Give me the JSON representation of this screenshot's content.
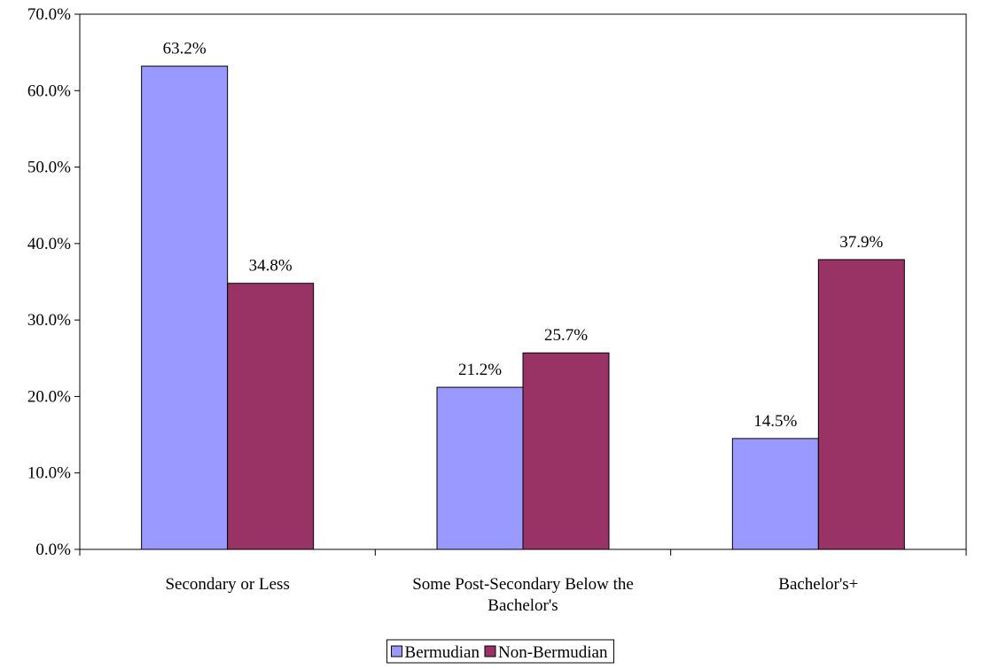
{
  "chart_data": {
    "type": "bar",
    "title": "",
    "xlabel": "",
    "ylabel": "",
    "categories": [
      [
        "Secondary or Less"
      ],
      [
        "Some Post-Secondary Below the",
        "Bachelor's"
      ],
      [
        "Bachelor's+"
      ]
    ],
    "series": [
      {
        "name": "Bermudian",
        "color": "#9999ff",
        "values": [
          63.2,
          21.2,
          14.5
        ],
        "labels": [
          "63.2%",
          "21.2%",
          "14.5%"
        ]
      },
      {
        "name": "Non-Bermudian",
        "color": "#993366",
        "values": [
          34.8,
          25.7,
          37.9
        ],
        "labels": [
          "34.8%",
          "25.7%",
          "37.9%"
        ]
      }
    ],
    "ylim": [
      0,
      70
    ],
    "yticks": [
      0,
      10,
      20,
      30,
      40,
      50,
      60,
      70
    ],
    "ytick_labels": [
      "0.0%",
      "10.0%",
      "20.0%",
      "30.0%",
      "40.0%",
      "50.0%",
      "60.0%",
      "70.0%"
    ],
    "grid": false,
    "legend_position": "bottom-center"
  }
}
